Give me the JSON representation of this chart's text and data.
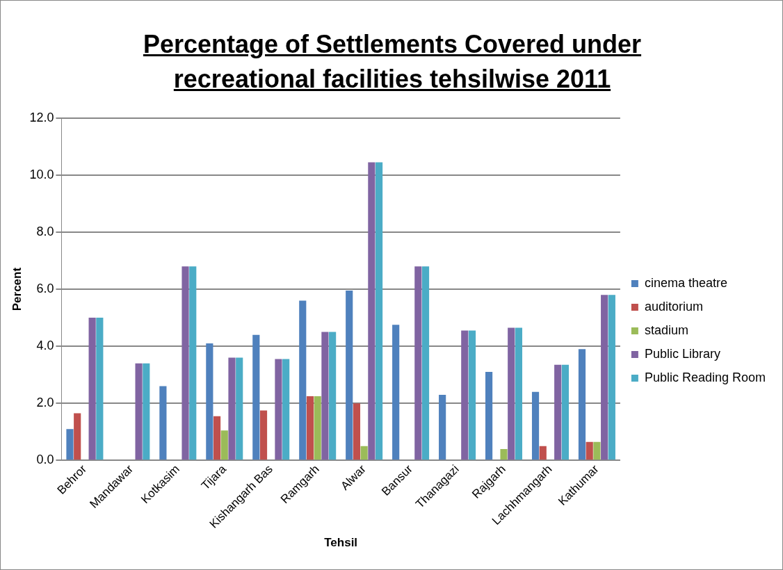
{
  "chart_data": {
    "type": "bar",
    "title": "Percentage of Settlements Covered under recreational facilities tehsilwise 2011",
    "xlabel": "Tehsil",
    "ylabel": "Percent",
    "categories": [
      "Behror",
      "Mandawar",
      "Kotkasim",
      "Tijara",
      "Kishangarh Bas",
      "Ramgarh",
      "Alwar",
      "Bansur",
      "Thanagazi",
      "Rajgarh",
      "Lachhmangarh",
      "Kathumar"
    ],
    "series": [
      {
        "name": "cinema theatre",
        "color": "#4f81bd",
        "values": [
          1.1,
          0,
          2.6,
          4.1,
          4.4,
          5.6,
          5.95,
          4.75,
          2.3,
          3.1,
          2.4,
          3.9
        ]
      },
      {
        "name": "auditorium",
        "color": "#c0504d",
        "values": [
          1.65,
          0,
          0,
          1.55,
          1.75,
          2.25,
          2.0,
          0,
          0,
          0,
          0.5,
          0.65
        ]
      },
      {
        "name": "stadium",
        "color": "#9bbb59",
        "values": [
          0,
          0,
          0,
          1.05,
          0,
          2.25,
          0.5,
          0,
          0,
          0.4,
          0,
          0.65
        ]
      },
      {
        "name": "Public Library",
        "color": "#8064a2",
        "values": [
          5.0,
          3.4,
          6.8,
          3.6,
          3.55,
          4.5,
          10.45,
          6.8,
          4.55,
          4.65,
          3.35,
          5.8
        ]
      },
      {
        "name": "Public Reading Room",
        "color": "#4bacc6",
        "values": [
          5.0,
          3.4,
          6.8,
          3.6,
          3.55,
          4.5,
          10.45,
          6.8,
          4.55,
          4.65,
          3.35,
          5.8
        ]
      }
    ],
    "ylim": [
      0,
      12
    ],
    "yticks": [
      {
        "value": 0,
        "label": "0.0"
      },
      {
        "value": 2,
        "label": "2.0"
      },
      {
        "value": 4,
        "label": "4.0"
      },
      {
        "value": 6,
        "label": "6.0"
      },
      {
        "value": 8,
        "label": "8.0"
      },
      {
        "value": 10,
        "label": "10.0"
      },
      {
        "value": 12,
        "label": "12.0"
      }
    ],
    "grid": "y",
    "legend": "right"
  }
}
